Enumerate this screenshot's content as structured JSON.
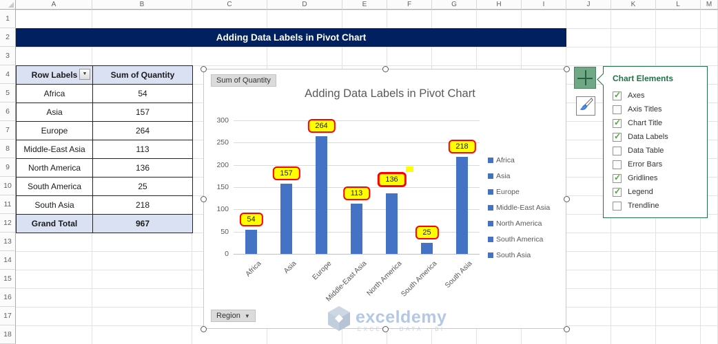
{
  "spreadsheet": {
    "column_headers": [
      "A",
      "B",
      "C",
      "D",
      "E",
      "F",
      "G",
      "H",
      "I",
      "J",
      "K",
      "L",
      "M"
    ],
    "row_headers": [
      "1",
      "2",
      "3",
      "4",
      "5",
      "6",
      "7",
      "8",
      "9",
      "10",
      "11",
      "12",
      "13",
      "14",
      "15",
      "16",
      "17",
      "18"
    ]
  },
  "banner": {
    "title": "Adding Data Labels in Pivot Chart",
    "bg_color": "#002060"
  },
  "pivot_table": {
    "headers": [
      "Row Labels",
      "Sum of Quantity"
    ],
    "rows": [
      [
        "Africa",
        "54"
      ],
      [
        "Asia",
        "157"
      ],
      [
        "Europe",
        "264"
      ],
      [
        "Middle-East Asia",
        "113"
      ],
      [
        "North America",
        "136"
      ],
      [
        "South America",
        "25"
      ],
      [
        "South Asia",
        "218"
      ]
    ],
    "total_row": [
      "Grand Total",
      "967"
    ],
    "header_fill": "#D9E1F2",
    "filter_icon": "▼"
  },
  "chart": {
    "pivot_field_button": "Sum of Quantity",
    "axis_field_button": "Region",
    "axis_field_arrow": "▼"
  },
  "chart_data": {
    "type": "bar",
    "title": "Adding Data Labels in Pivot Chart",
    "categories": [
      "Africa",
      "Asia",
      "Europe",
      "Middle-East Asia",
      "North America",
      "South America",
      "South Asia"
    ],
    "values": [
      54,
      157,
      264,
      113,
      136,
      25,
      218
    ],
    "data_labels": [
      "54",
      "157",
      "264",
      "113",
      "136",
      "25",
      "218"
    ],
    "selected_label_index": 4,
    "ylim": [
      0,
      300
    ],
    "yticks": [
      0,
      50,
      100,
      150,
      200,
      250,
      300
    ],
    "grid": true,
    "legend_position": "right",
    "legend": [
      "Africa",
      "Asia",
      "Europe",
      "Middle-East Asia",
      "North America",
      "South America",
      "South Asia"
    ],
    "bar_color": "#4472C4",
    "label_fill": "#FFFF00",
    "label_border": "#FF0000"
  },
  "watermark": {
    "brand": "exceldemy",
    "tagline": "EXCEL · DATA · BI"
  },
  "chart_elements_panel": {
    "title": "Chart Elements",
    "accent_color": "#217346",
    "check_color": "#4EA72E",
    "items": [
      {
        "label": "Axes",
        "checked": true
      },
      {
        "label": "Axis Titles",
        "checked": false
      },
      {
        "label": "Chart Title",
        "checked": true
      },
      {
        "label": "Data Labels",
        "checked": true
      },
      {
        "label": "Data Table",
        "checked": false
      },
      {
        "label": "Error Bars",
        "checked": false
      },
      {
        "label": "Gridlines",
        "checked": true
      },
      {
        "label": "Legend",
        "checked": true
      },
      {
        "label": "Trendline",
        "checked": false
      }
    ]
  }
}
